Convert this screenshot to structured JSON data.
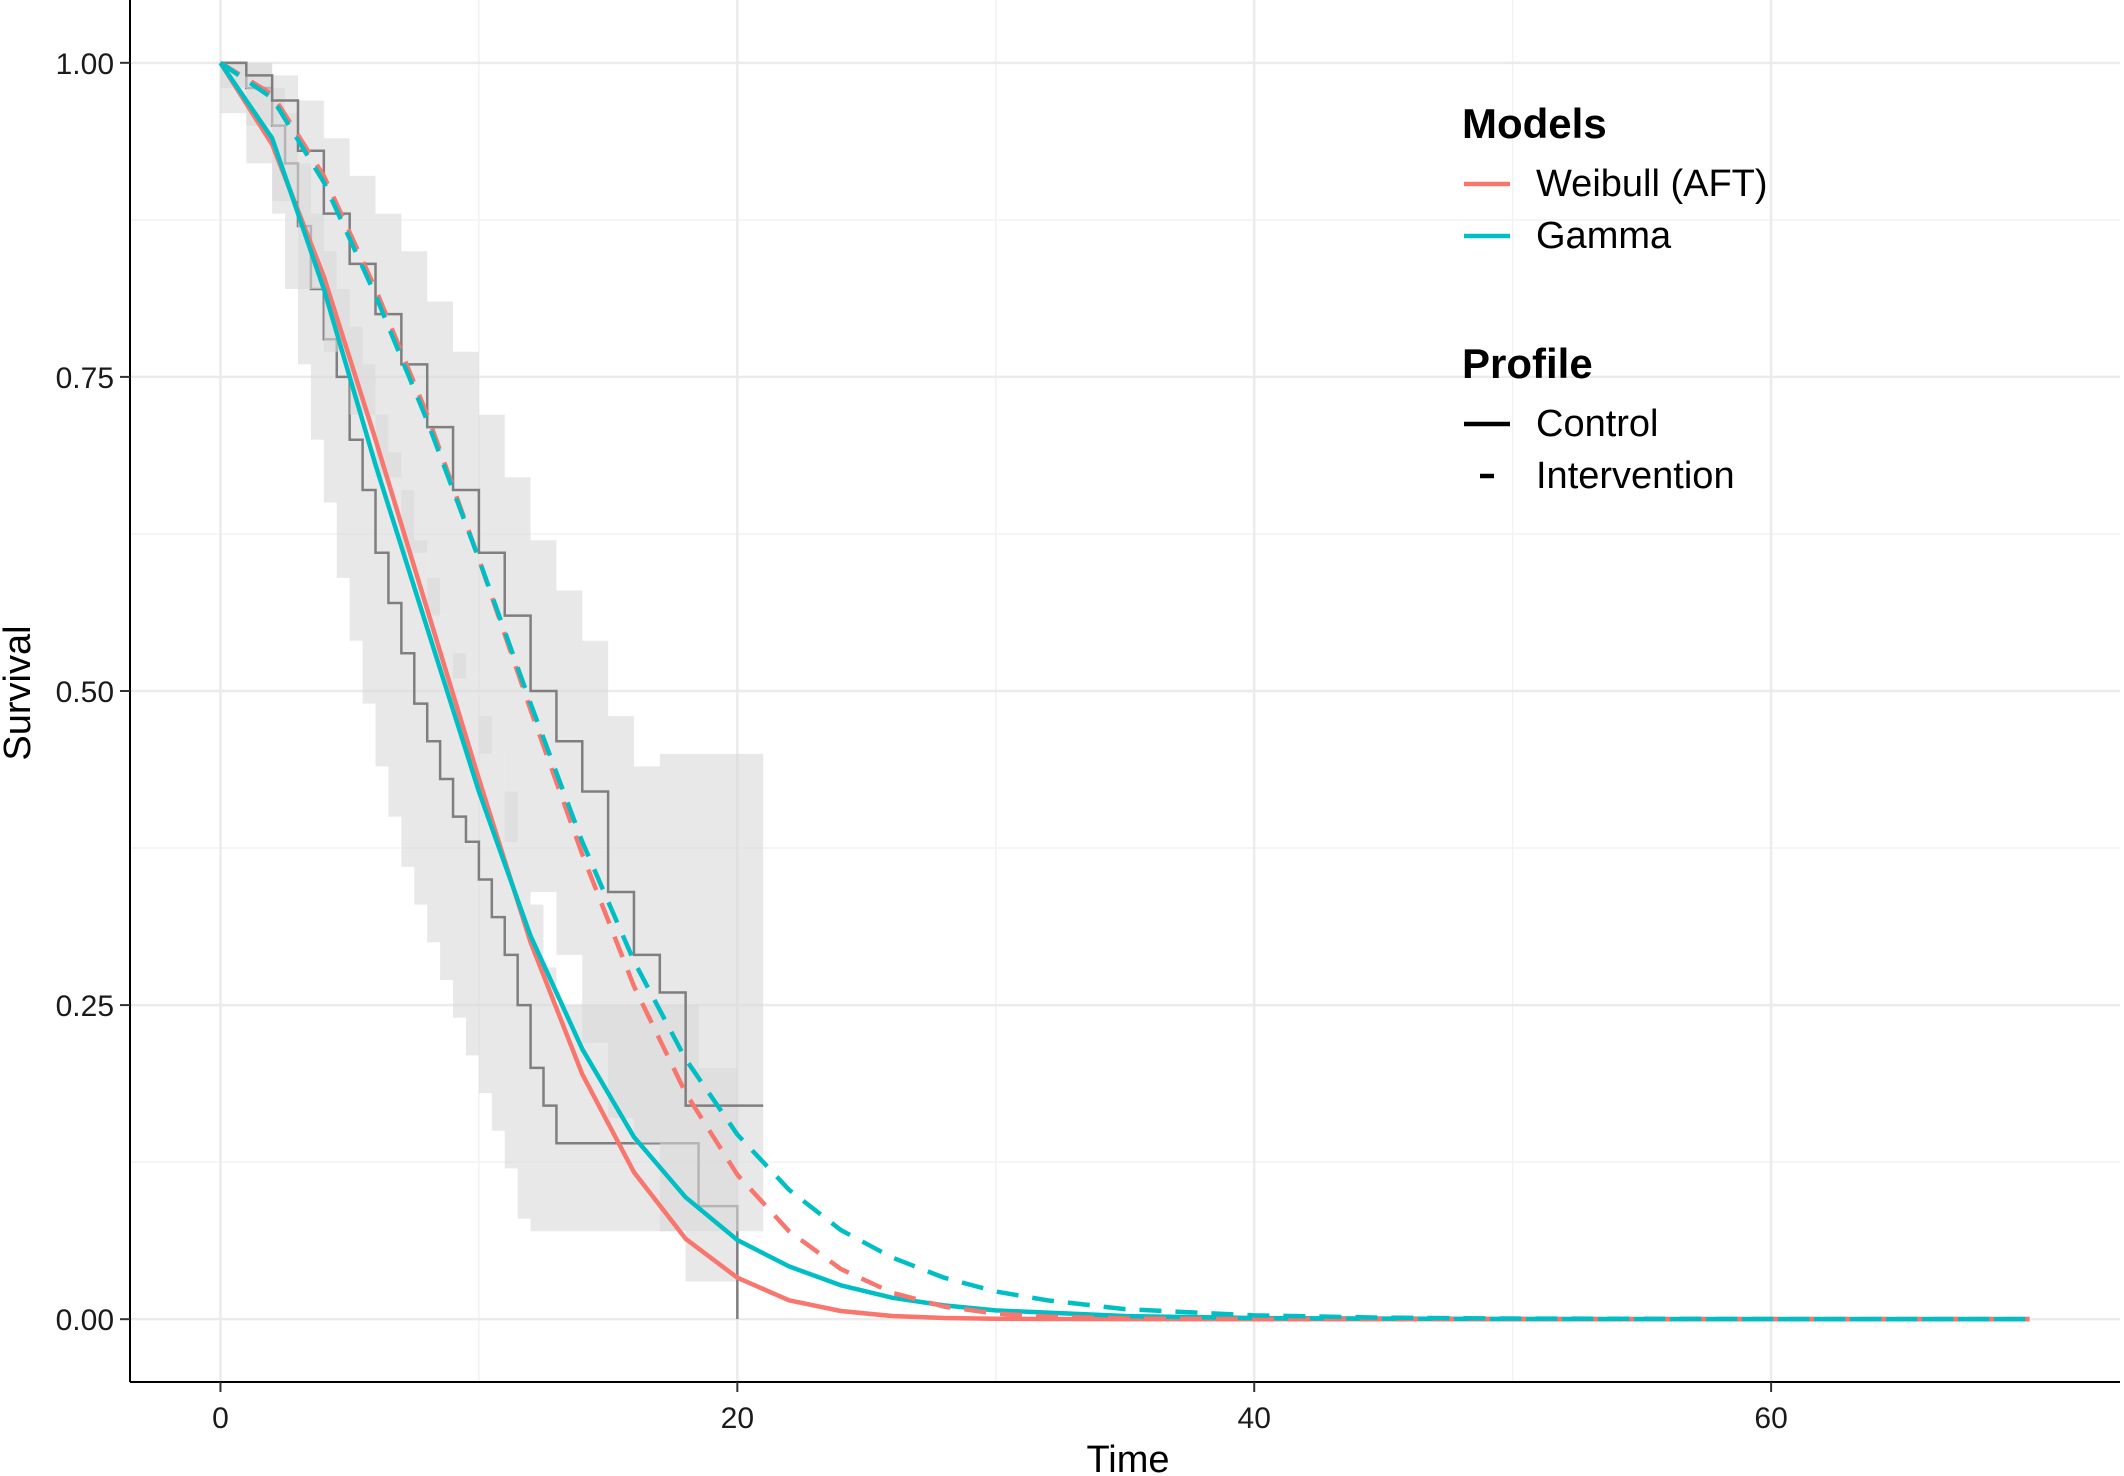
{
  "chart_data": {
    "type": "line",
    "xlabel": "Time",
    "ylabel": "Survival",
    "xlim": [
      -3.5,
      73.5
    ],
    "ylim": [
      -0.05,
      1.05
    ],
    "x_ticks": [
      0,
      20,
      40,
      60
    ],
    "x_tick_labels": [
      "0",
      "20",
      "40",
      "60"
    ],
    "y_ticks": [
      0,
      0.25,
      0.5,
      0.75,
      1
    ],
    "y_tick_labels": [
      "0.00",
      "0.25",
      "0.50",
      "0.75",
      "1.00"
    ],
    "grid": true,
    "legend_position": "top-right",
    "legends": [
      {
        "title": "Models",
        "entries": [
          {
            "label": "Weibull (AFT)",
            "color": "#F8766D",
            "dash": "solid"
          },
          {
            "label": "Gamma",
            "color": "#00BFC4",
            "dash": "solid"
          }
        ]
      },
      {
        "title": "Profile",
        "entries": [
          {
            "label": "Control",
            "color": "#000000",
            "dash": "solid"
          },
          {
            "label": "Intervention",
            "color": "#000000",
            "dash": "dashed"
          }
        ]
      }
    ],
    "colors": {
      "weibull": "#F8766D",
      "gamma": "#00BFC4",
      "km_line": "#7f7f7f",
      "km_band": "#d9d9d9"
    },
    "series": [
      {
        "model": "Weibull (AFT)",
        "profile": "Control",
        "x": [
          0,
          2,
          4,
          6,
          8,
          10,
          12,
          14,
          16,
          18,
          20,
          22,
          24,
          26,
          28,
          30,
          35,
          40,
          50,
          60,
          70
        ],
        "y": [
          1.0,
          0.935,
          0.83,
          0.7,
          0.565,
          0.43,
          0.3,
          0.195,
          0.117,
          0.064,
          0.033,
          0.015,
          0.0065,
          0.0025,
          0.0009,
          0.0003,
          0.0,
          0.0,
          0.0,
          0.0,
          0.0
        ]
      },
      {
        "model": "Gamma",
        "profile": "Control",
        "x": [
          0,
          2,
          4,
          6,
          8,
          10,
          12,
          14,
          16,
          18,
          20,
          22,
          24,
          26,
          28,
          30,
          35,
          40,
          50,
          60,
          70
        ],
        "y": [
          1.0,
          0.94,
          0.82,
          0.68,
          0.55,
          0.42,
          0.305,
          0.215,
          0.145,
          0.097,
          0.063,
          0.042,
          0.027,
          0.017,
          0.011,
          0.007,
          0.0025,
          0.0009,
          0.0001,
          0.0,
          0.0
        ]
      },
      {
        "model": "Weibull (AFT)",
        "profile": "Intervention",
        "x": [
          0,
          2,
          4,
          6,
          8,
          10,
          12,
          14,
          16,
          18,
          20,
          22,
          24,
          26,
          28,
          30,
          32,
          35,
          40,
          50,
          60,
          70
        ],
        "y": [
          1.0,
          0.975,
          0.91,
          0.82,
          0.72,
          0.605,
          0.485,
          0.37,
          0.265,
          0.18,
          0.115,
          0.07,
          0.04,
          0.021,
          0.01,
          0.0045,
          0.002,
          0.0005,
          0.0,
          0.0,
          0.0,
          0.0
        ]
      },
      {
        "model": "Gamma",
        "profile": "Intervention",
        "x": [
          0,
          2,
          4,
          6,
          8,
          10,
          12,
          14,
          16,
          18,
          20,
          22,
          24,
          26,
          28,
          30,
          32,
          35,
          40,
          45,
          50,
          60,
          70
        ],
        "y": [
          1.0,
          0.972,
          0.905,
          0.815,
          0.715,
          0.605,
          0.49,
          0.38,
          0.285,
          0.207,
          0.147,
          0.103,
          0.071,
          0.049,
          0.033,
          0.022,
          0.015,
          0.008,
          0.003,
          0.0012,
          0.0005,
          0.0001,
          0.0
        ]
      }
    ],
    "km_curves": [
      {
        "profile": "Control",
        "x": [
          0,
          1,
          2,
          2.5,
          3,
          3.5,
          4,
          4.5,
          5,
          5.5,
          6,
          6.5,
          7,
          7.5,
          8,
          8.5,
          9,
          9.5,
          10,
          10.5,
          11,
          11.5,
          12,
          12.5,
          13,
          15,
          17,
          18,
          18.5,
          19,
          20
        ],
        "y": [
          1.0,
          0.98,
          0.95,
          0.92,
          0.87,
          0.82,
          0.78,
          0.75,
          0.7,
          0.66,
          0.61,
          0.57,
          0.53,
          0.49,
          0.46,
          0.43,
          0.4,
          0.38,
          0.35,
          0.32,
          0.29,
          0.25,
          0.2,
          0.17,
          0.14,
          0.14,
          0.14,
          0.14,
          0.09,
          0.09,
          0.0
        ],
        "lower": [
          1.0,
          0.96,
          0.92,
          0.88,
          0.82,
          0.76,
          0.7,
          0.65,
          0.59,
          0.54,
          0.49,
          0.44,
          0.4,
          0.36,
          0.33,
          0.3,
          0.27,
          0.24,
          0.21,
          0.18,
          0.15,
          0.12,
          0.08,
          0.07,
          0.07,
          0.07,
          0.07,
          0.07,
          0.03,
          0.03,
          0.03
        ],
        "upper": [
          1.0,
          1.0,
          0.98,
          0.96,
          0.92,
          0.88,
          0.85,
          0.82,
          0.79,
          0.76,
          0.72,
          0.69,
          0.66,
          0.62,
          0.59,
          0.56,
          0.53,
          0.51,
          0.48,
          0.45,
          0.42,
          0.38,
          0.33,
          0.28,
          0.25,
          0.25,
          0.25,
          0.25,
          0.2,
          0.2,
          0.2
        ]
      },
      {
        "profile": "Intervention",
        "x": [
          0,
          1,
          2,
          3,
          4,
          5,
          6,
          7,
          8,
          9,
          10,
          11,
          12,
          13,
          14,
          15,
          16,
          17,
          18,
          21
        ],
        "y": [
          1.0,
          0.99,
          0.97,
          0.93,
          0.88,
          0.84,
          0.8,
          0.76,
          0.71,
          0.66,
          0.61,
          0.56,
          0.5,
          0.46,
          0.42,
          0.34,
          0.29,
          0.26,
          0.17,
          0.17
        ],
        "lower": [
          1.0,
          0.98,
          0.95,
          0.89,
          0.82,
          0.77,
          0.72,
          0.67,
          0.61,
          0.56,
          0.51,
          0.45,
          0.38,
          0.34,
          0.29,
          0.22,
          0.16,
          0.14,
          0.07,
          0.07
        ],
        "upper": [
          1.0,
          1.0,
          0.99,
          0.97,
          0.94,
          0.91,
          0.88,
          0.85,
          0.81,
          0.77,
          0.72,
          0.67,
          0.62,
          0.58,
          0.54,
          0.48,
          0.44,
          0.45,
          0.45,
          0.45
        ]
      }
    ]
  }
}
